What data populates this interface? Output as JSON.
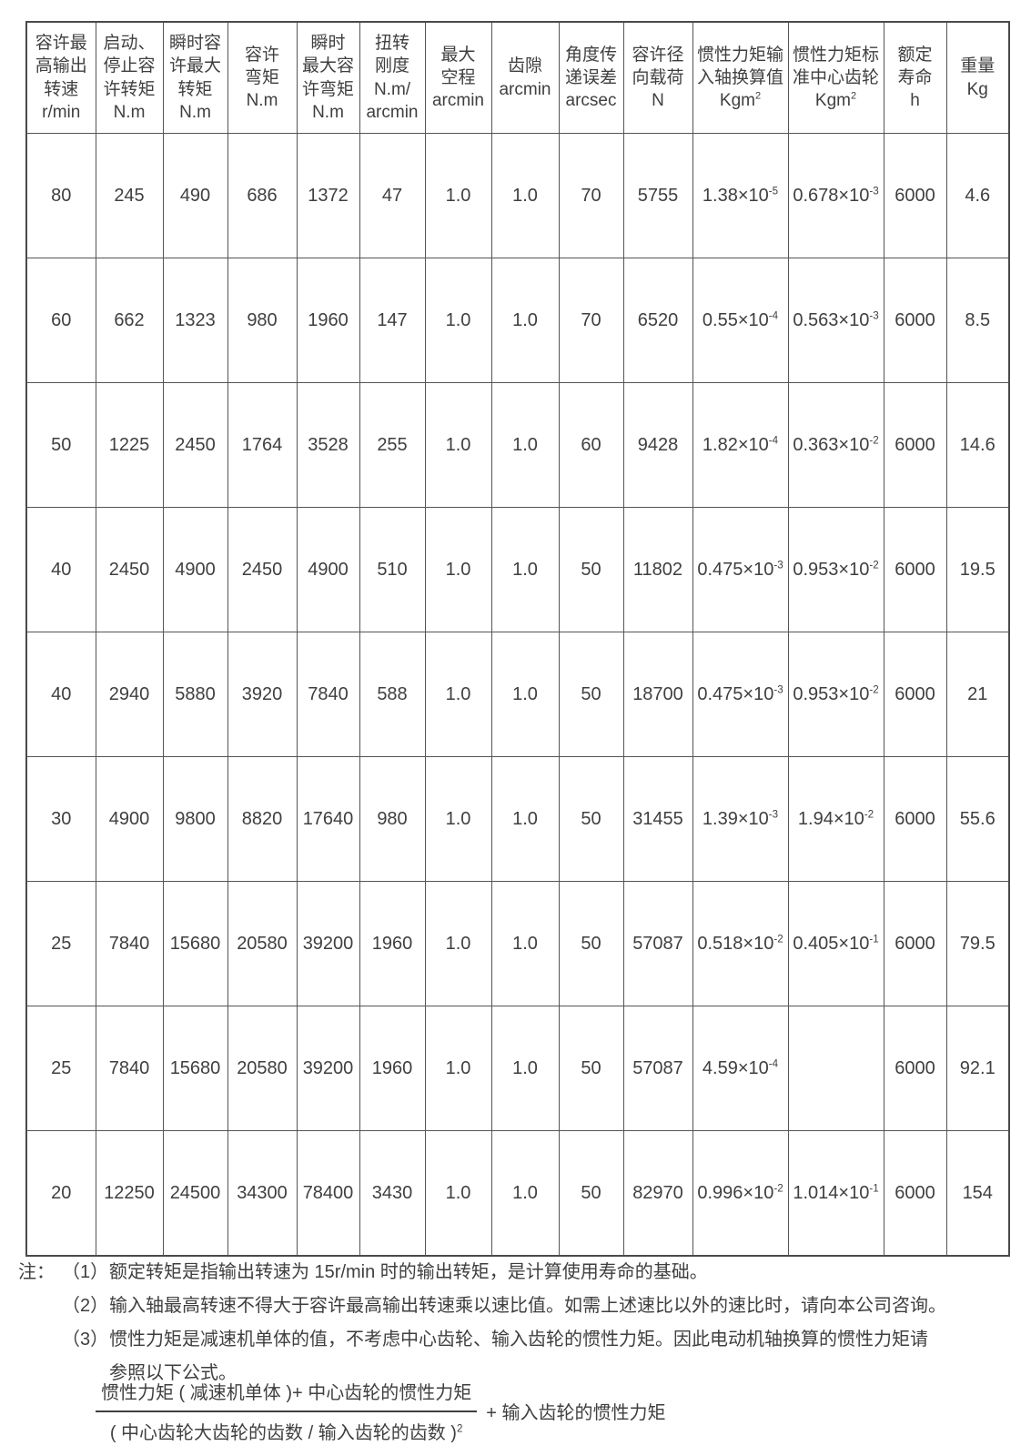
{
  "colors": {
    "text": "#3f3f3f",
    "border": "#555555"
  },
  "table": {
    "columns": [
      "容许最\n高输出\n转速\nr/min",
      "启动、\n停止容\n许转矩\nN.m",
      "瞬时容\n许最大\n转矩\nN.m",
      "容许\n弯矩\nN.m",
      "瞬时\n最大容\n许弯矩\nN.m",
      "扭转\n刚度\nN.m/\narcmin",
      "最大\n空程\narcmin",
      "齿隙\narcmin",
      "角度传\n递误差\narcsec",
      "容许径\n向载荷\nN",
      "惯性力矩输\n入轴换算值\nKgm^2",
      "惯性力矩标\n准中心齿轮\nKgm^2",
      "额定\n寿命\nh",
      "重量\nKg"
    ],
    "rows": [
      [
        "80",
        "245",
        "490",
        "686",
        "1372",
        "47",
        "1.0",
        "1.0",
        "70",
        "5755",
        "1.38×10^-5",
        "0.678×10^-3",
        "6000",
        "4.6"
      ],
      [
        "60",
        "662",
        "1323",
        "980",
        "1960",
        "147",
        "1.0",
        "1.0",
        "70",
        "6520",
        "0.55×10^-4",
        "0.563×10^-3",
        "6000",
        "8.5"
      ],
      [
        "50",
        "1225",
        "2450",
        "1764",
        "3528",
        "255",
        "1.0",
        "1.0",
        "60",
        "9428",
        "1.82×10^-4",
        "0.363×10^-2",
        "6000",
        "14.6"
      ],
      [
        "40",
        "2450",
        "4900",
        "2450",
        "4900",
        "510",
        "1.0",
        "1.0",
        "50",
        "11802",
        "0.475×10^-3",
        "0.953×10^-2",
        "6000",
        "19.5"
      ],
      [
        "40",
        "2940",
        "5880",
        "3920",
        "7840",
        "588",
        "1.0",
        "1.0",
        "50",
        "18700",
        "0.475×10^-3",
        "0.953×10^-2",
        "6000",
        "21"
      ],
      [
        "30",
        "4900",
        "9800",
        "8820",
        "17640",
        "980",
        "1.0",
        "1.0",
        "50",
        "31455",
        "1.39×10^-3",
        "1.94×10^-2",
        "6000",
        "55.6"
      ],
      [
        "25",
        "7840",
        "15680",
        "20580",
        "39200",
        "1960",
        "1.0",
        "1.0",
        "50",
        "57087",
        "0.518×10^-2",
        "0.405×10^-1",
        "6000",
        "79.5"
      ],
      [
        "25",
        "7840",
        "15680",
        "20580",
        "39200",
        "1960",
        "1.0",
        "1.0",
        "50",
        "57087",
        "4.59×10^-4",
        "",
        "6000",
        "92.1"
      ],
      [
        "20",
        "12250",
        "24500",
        "34300",
        "78400",
        "3430",
        "1.0",
        "1.0",
        "50",
        "82970",
        "0.996×10^-2",
        "1.014×10^-1",
        "6000",
        "154"
      ]
    ]
  },
  "notes": {
    "label": "注：",
    "items": [
      {
        "marker": "（1）",
        "text": "额定转矩是指输出转速为 15r/min 时的输出转矩，是计算使用寿命的基础。"
      },
      {
        "marker": "（2）",
        "text": "输入轴最高转速不得大于容许最高输出转速乘以速比值。如需上述速比以外的速比时，请向本公司咨询。"
      },
      {
        "marker": "（3）",
        "text": "惯性力矩是减速机单体的值，不考虑中心齿轮、输入齿轮的惯性力矩。因此电动机轴换算的惯性力矩请"
      },
      {
        "marker": "",
        "text": "参照以下公式。"
      }
    ]
  },
  "formula": {
    "numerator": "惯性力矩 ( 减速机单体 )+ 中心齿轮的惯性力矩",
    "denominator": "( 中心齿轮大齿轮的齿数 / 输入齿轮的齿数 )^2",
    "plus_term": "+ 输入齿轮的惯性力矩"
  }
}
